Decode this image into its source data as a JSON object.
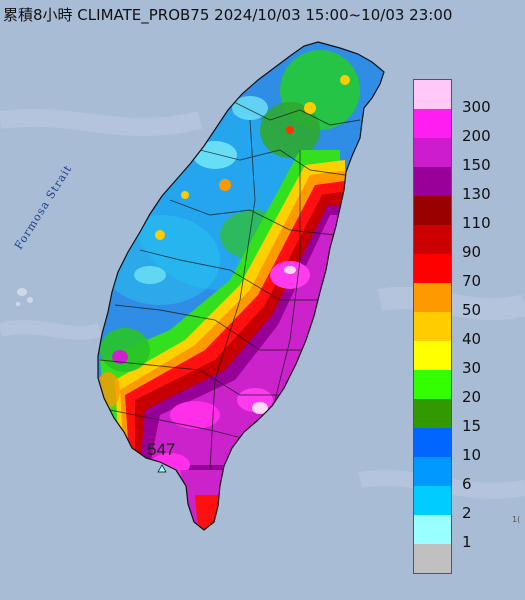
{
  "title": "累積8小時 CLIMATE_PROB75 2024/10/03 15:00~10/03 23:00",
  "strait_label": "Formosa Strait",
  "max_value_label": "547",
  "corner_mark": "1(",
  "colors": {
    "sea": "#a9bcd6",
    "land_base": "#3d9fe0"
  },
  "legend": [
    {
      "label": "300",
      "color": "#ffc8f5"
    },
    {
      "label": "200",
      "color": "#ff1eef"
    },
    {
      "label": "150",
      "color": "#cc1ccc"
    },
    {
      "label": "130",
      "color": "#990099"
    },
    {
      "label": "110",
      "color": "#990000"
    },
    {
      "label": "90",
      "color": "#cc0000"
    },
    {
      "label": "70",
      "color": "#ff0000"
    },
    {
      "label": "50",
      "color": "#ff9900"
    },
    {
      "label": "40",
      "color": "#ffcc00"
    },
    {
      "label": "30",
      "color": "#ffff00"
    },
    {
      "label": "20",
      "color": "#33ff00"
    },
    {
      "label": "15",
      "color": "#339900"
    },
    {
      "label": "10",
      "color": "#0066ff"
    },
    {
      "label": "6",
      "color": "#0099ff"
    },
    {
      "label": "2",
      "color": "#00ccff"
    },
    {
      "label": "1",
      "color": "#99ffff"
    },
    {
      "label": "",
      "color": "#c0c0c0"
    }
  ]
}
